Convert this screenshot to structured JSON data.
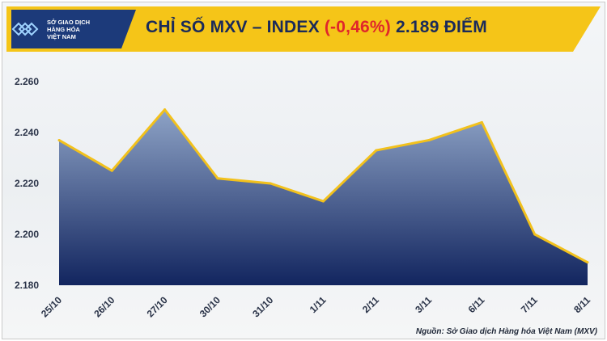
{
  "header": {
    "title_prefix": "CHỈ SỐ MXV – INDEX ",
    "title_change": "(-0,46%)",
    "title_suffix": " 2.189 ĐIỂM",
    "logo_line1": "SỞ GIAO DỊCH",
    "logo_line2": "HÀNG HÓA",
    "logo_line3": "VIỆT NAM"
  },
  "source": "Nguồn: Sở Giao dịch Hàng hóa Việt Nam (MXV)",
  "colors": {
    "banner": "#f5c518",
    "line": "#f2c11c",
    "area_top": "#8ea3c6",
    "area_bottom": "#12255f",
    "title": "#1a2a5a",
    "change": "#e0262b"
  },
  "chart_data": {
    "type": "area",
    "categories": [
      "25/10",
      "26/10",
      "27/10",
      "30/10",
      "31/10",
      "1/11",
      "2/11",
      "3/11",
      "6/11",
      "7/11",
      "8/11"
    ],
    "series": [
      {
        "values": [
          2237,
          2225,
          2249,
          2222,
          2220,
          2213,
          2233,
          2237,
          2244,
          2200,
          2189
        ]
      }
    ],
    "y_ticks": [
      "2.180",
      "2.200",
      "2.220",
      "2.240",
      "2.260"
    ],
    "ylim": [
      2180,
      2260
    ],
    "grid": false,
    "legend": "none"
  }
}
